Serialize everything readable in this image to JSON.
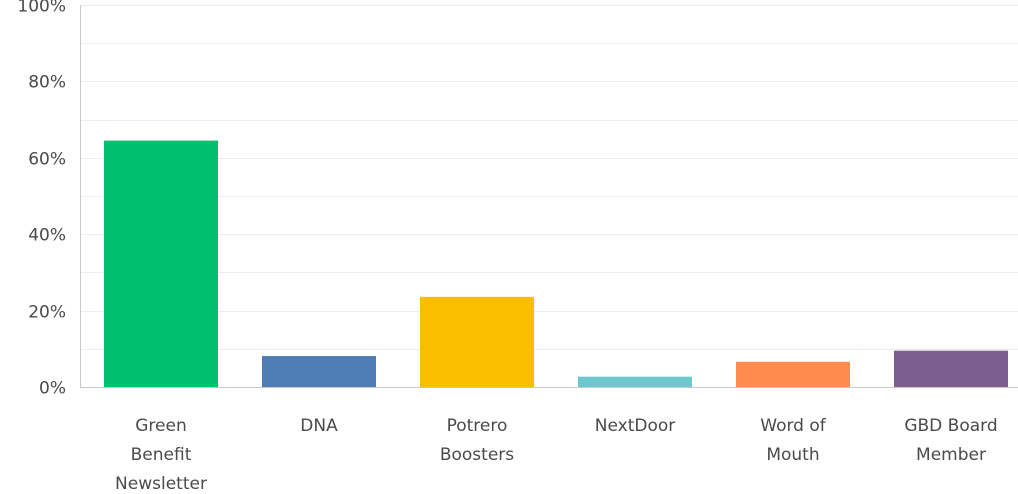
{
  "chart_data": {
    "type": "bar",
    "title": "",
    "xlabel": "",
    "ylabel": "",
    "ylim": [
      0,
      100
    ],
    "y_tick_labels": [
      "0%",
      "20%",
      "40%",
      "60%",
      "80%",
      "100%"
    ],
    "y_tick_values": [
      0,
      20,
      40,
      60,
      80,
      100
    ],
    "minor_grid_values": [
      10,
      30,
      50,
      70,
      90
    ],
    "grid": true,
    "categories": [
      {
        "id": "green-benefit-newsletter",
        "lines": [
          "Green",
          "Benefit",
          "Newsletter"
        ],
        "value": 64.5,
        "color": "#00bf6f"
      },
      {
        "id": "dna",
        "lines": [
          "DNA"
        ],
        "value": 8.1,
        "color": "#507cb6"
      },
      {
        "id": "potrero-boosters",
        "lines": [
          "Potrero",
          "Boosters"
        ],
        "value": 23.6,
        "color": "#f9be00"
      },
      {
        "id": "nextdoor",
        "lines": [
          "NextDoor"
        ],
        "value": 2.7,
        "color": "#6bc8cd"
      },
      {
        "id": "word-of-mouth",
        "lines": [
          "Word of",
          "Mouth"
        ],
        "value": 6.6,
        "color": "#ff8b4f"
      },
      {
        "id": "gbd-board-member",
        "lines": [
          "GBD Board",
          "Member"
        ],
        "value": 9.5,
        "color": "#7d5e90"
      }
    ]
  }
}
